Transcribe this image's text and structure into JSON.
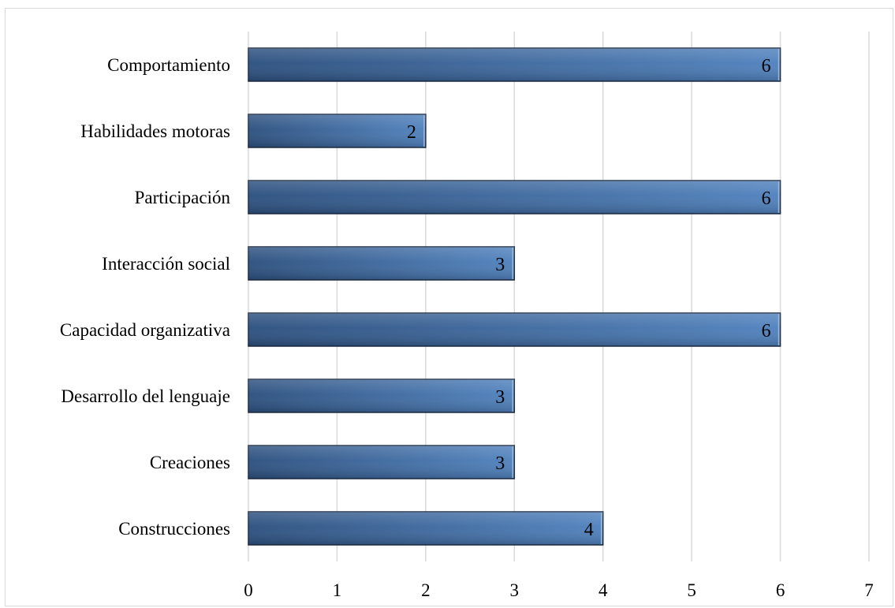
{
  "chart_data": {
    "type": "bar",
    "orientation": "horizontal",
    "categories": [
      "Comportamiento",
      "Habilidades motoras",
      "Participación",
      "Interacción social",
      "Capacidad organizativa",
      "Desarrollo del lenguaje",
      "Creaciones",
      "Construcciones"
    ],
    "values": [
      6,
      2,
      6,
      3,
      6,
      3,
      3,
      4
    ],
    "title": "",
    "xlabel": "",
    "ylabel": "",
    "xlim": [
      0,
      7
    ],
    "x_ticks": [
      "0",
      "1",
      "2",
      "3",
      "4",
      "5",
      "6",
      "7"
    ],
    "grid": "vertical",
    "legend": "none",
    "data_labels": "inside-end",
    "colors": {
      "bar_dark": "#2b4f7e",
      "bar_light": "#4f81bd",
      "bar_edge": "#1f2f45",
      "grid": "#d9d9d9"
    }
  }
}
